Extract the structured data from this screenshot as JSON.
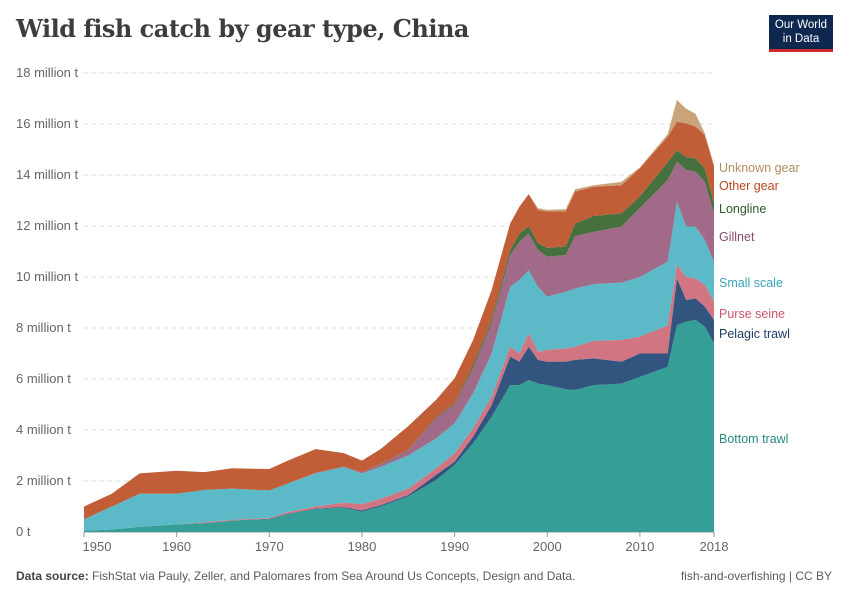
{
  "header": {
    "title": "Wild fish catch by gear type, China",
    "logo": "Our World in Data"
  },
  "footer": {
    "source_label": "Data source:",
    "source_text": "FishStat via Pauly, Zeller, and Palomares from Sea Around Us Concepts, Design and Data.",
    "right": "fish-and-overfishing | CC BY"
  },
  "chart_data": {
    "type": "area",
    "stacked": true,
    "title": "Wild fish catch by gear type, China",
    "ylim": [
      0,
      18000000
    ],
    "yticks": [
      0,
      2000000,
      4000000,
      6000000,
      8000000,
      10000000,
      12000000,
      14000000,
      16000000,
      18000000
    ],
    "ytick_labels": [
      "0 t",
      "2 million t",
      "4 million t",
      "6 million t",
      "8 million t",
      "10 million t",
      "12 million t",
      "14 million t",
      "16 million t",
      "18 million t"
    ],
    "xticks": [
      1950,
      1960,
      1970,
      1980,
      1990,
      2000,
      2010,
      2018
    ],
    "xtick_labels": [
      "1950",
      "1960",
      "1970",
      "1980",
      "1990",
      "2000",
      "2010",
      "2018"
    ],
    "xlim": [
      1950,
      2018
    ],
    "grid": "horizontal dashed",
    "legend": "inline labels right",
    "unit": "million t",
    "x": [
      1950,
      1953,
      1956,
      1960,
      1963,
      1966,
      1970,
      1972,
      1975,
      1978,
      1980,
      1982,
      1985,
      1988,
      1990,
      1992,
      1994,
      1996,
      1997,
      1998,
      1999,
      2000,
      2002,
      2003,
      2005,
      2008,
      2010,
      2013,
      2014,
      2015,
      2016,
      2017,
      2018
    ],
    "series": [
      {
        "name": "Bottom trawl",
        "color": "#359e96",
        "label_color": "#2a8a82",
        "values": [
          0.05,
          0.1,
          0.2,
          0.3,
          0.35,
          0.45,
          0.5,
          0.7,
          0.9,
          0.95,
          0.8,
          1.0,
          1.4,
          2.04,
          2.63,
          3.48,
          4.52,
          5.76,
          5.76,
          5.96,
          5.82,
          5.76,
          5.6,
          5.57,
          5.76,
          5.82,
          6.08,
          6.48,
          8.12,
          8.25,
          8.32,
          8.06,
          7.4
        ]
      },
      {
        "name": "Pelagic trawl",
        "color": "#31557f",
        "label_color": "#1f3d66",
        "values": [
          0,
          0,
          0,
          0,
          0,
          0,
          0.02,
          0.02,
          0.02,
          0.03,
          0.05,
          0.05,
          0.05,
          0.2,
          0.13,
          0.26,
          0.46,
          1.12,
          0.92,
          1.31,
          0.93,
          0.92,
          1.08,
          1.18,
          1.05,
          0.86,
          0.92,
          0.52,
          1.83,
          0.85,
          0.84,
          0.79,
          0.92
        ]
      },
      {
        "name": "Purse seine",
        "color": "#d27582",
        "label_color": "#c9566a",
        "values": [
          0,
          0,
          0,
          0,
          0.03,
          0.03,
          0.03,
          0.06,
          0.08,
          0.17,
          0.25,
          0.25,
          0.25,
          0.26,
          0.33,
          0.33,
          0.33,
          0.39,
          0.32,
          0.53,
          0.32,
          0.46,
          0.52,
          0.52,
          0.69,
          0.85,
          0.66,
          1.1,
          0.55,
          0.9,
          0.78,
          0.85,
          0.72
        ]
      },
      {
        "name": "Small scale",
        "color": "#5cb9c7",
        "label_color": "#3aa5b7",
        "values": [
          0.45,
          0.9,
          1.3,
          1.2,
          1.27,
          1.22,
          1.08,
          1.12,
          1.3,
          1.4,
          1.2,
          1.25,
          1.3,
          1.17,
          1.17,
          1.37,
          1.69,
          2.35,
          2.88,
          2.47,
          2.55,
          2.09,
          2.22,
          2.28,
          2.22,
          2.25,
          2.34,
          2.5,
          2.45,
          1.98,
          2.04,
          1.76,
          1.56
        ]
      },
      {
        "name": "Gillnet",
        "color": "#a06a88",
        "label_color": "#8a4b6c",
        "values": [
          0,
          0,
          0,
          0,
          0,
          0,
          0,
          0,
          0.02,
          0.02,
          0.05,
          0.1,
          0.2,
          0.79,
          0.74,
          0.98,
          1.2,
          1.24,
          1.5,
          1.43,
          1.44,
          1.57,
          1.44,
          2.05,
          2.05,
          2.19,
          2.7,
          3.2,
          1.57,
          2.22,
          2.15,
          2.28,
          1.9
        ]
      },
      {
        "name": "Longline",
        "color": "#47703f",
        "label_color": "#2d5a28",
        "values": [
          0,
          0,
          0,
          0,
          0,
          0,
          0,
          0,
          0,
          0,
          0,
          0.02,
          0.02,
          0.04,
          0.05,
          0.13,
          0.13,
          0.2,
          0.32,
          0.3,
          0.27,
          0.34,
          0.34,
          0.5,
          0.62,
          0.53,
          0.46,
          0.7,
          0.46,
          0.5,
          0.52,
          0.52,
          0.4
        ]
      },
      {
        "name": "Other gear",
        "color": "#c15e38",
        "label_color": "#b84a24",
        "values": [
          0.5,
          0.5,
          0.8,
          0.9,
          0.7,
          0.8,
          0.84,
          0.9,
          0.93,
          0.53,
          0.45,
          0.58,
          0.93,
          0.68,
          0.98,
          0.98,
          1.16,
          1.04,
          1.06,
          1.25,
          1.3,
          1.43,
          1.37,
          1.25,
          1.15,
          1.1,
          1.11,
          1.0,
          1.11,
          1.33,
          1.25,
          1.31,
          1.43
        ]
      },
      {
        "name": "Unknown gear",
        "color": "#c9a47a",
        "label_color": "#b38d62",
        "values": [
          0,
          0,
          0,
          0,
          0,
          0,
          0,
          0,
          0,
          0,
          0,
          0,
          0,
          0,
          0,
          0,
          0,
          0,
          0,
          0,
          0.07,
          0.06,
          0.09,
          0.09,
          0.06,
          0.13,
          0.03,
          0.1,
          0.85,
          0.57,
          0.5,
          0.07,
          0.07
        ]
      }
    ]
  }
}
